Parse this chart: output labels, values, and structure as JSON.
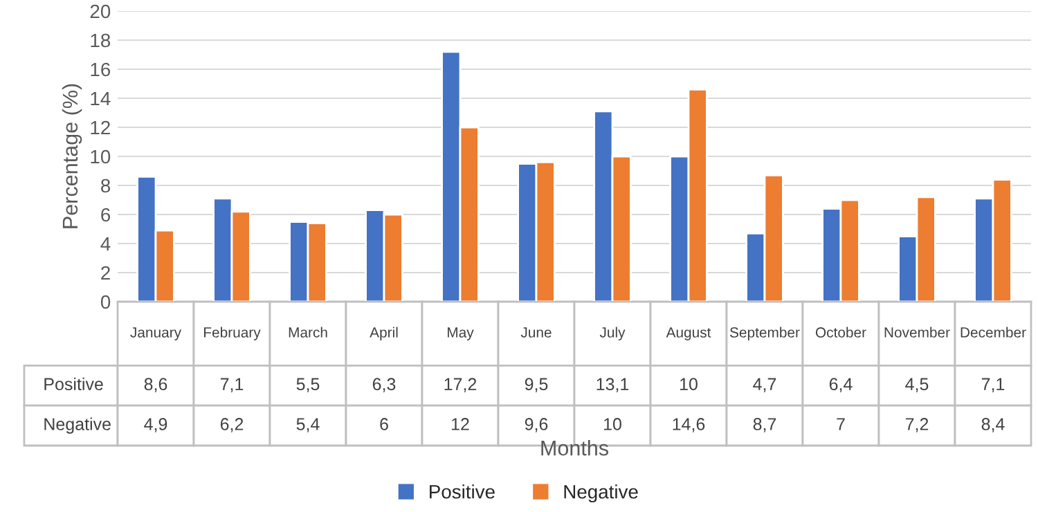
{
  "chart_data": {
    "type": "bar",
    "xlabel": "Months",
    "ylabel": "Percentage (%)",
    "categories": [
      "January",
      "February",
      "March",
      "April",
      "May",
      "June",
      "July",
      "August",
      "September",
      "October",
      "November",
      "December"
    ],
    "series": [
      {
        "name": "Positive",
        "color": "#4472c4",
        "values": [
          8.6,
          7.1,
          5.5,
          6.3,
          17.2,
          9.5,
          13.1,
          10,
          4.7,
          6.4,
          4.5,
          7.1
        ],
        "value_labels": [
          "8,6",
          "7,1",
          "5,5",
          "6,3",
          "17,2",
          "9,5",
          "13,1",
          "10",
          "4,7",
          "6,4",
          "4,5",
          "7,1"
        ]
      },
      {
        "name": "Negative",
        "color": "#ed7d31",
        "values": [
          4.9,
          6.2,
          5.4,
          6,
          12,
          9.6,
          10,
          14.6,
          8.7,
          7,
          7.2,
          8.4
        ],
        "value_labels": [
          "4,9",
          "6,2",
          "5,4",
          "6",
          "12",
          "9,6",
          "10",
          "14,6",
          "8,7",
          "7",
          "7,2",
          "8,4"
        ]
      }
    ],
    "ylim": [
      0,
      20
    ],
    "yticks": [
      0,
      2,
      4,
      6,
      8,
      10,
      12,
      14,
      16,
      18,
      20
    ],
    "grid": "y",
    "legend": "bottom"
  }
}
